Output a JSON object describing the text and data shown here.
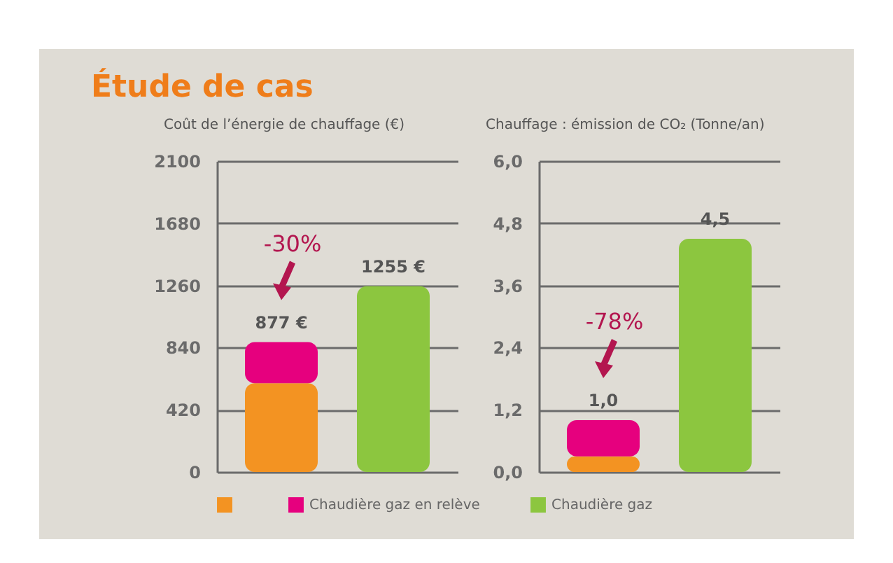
{
  "chart_data": [
    {
      "type": "bar",
      "title": "Étude de cas",
      "subtitle": "Coût de l’énergie de chauffage (€)",
      "categories": [
        null,
        null
      ],
      "stacked": true,
      "series": [
        {
          "color": "#f39322",
          "values": [
            600,
            null
          ]
        },
        {
          "name": "Chaudière gaz en relève",
          "color": "#e6007e",
          "values": [
            277,
            null
          ]
        },
        {
          "name": "Chaudière gaz",
          "color": "#8cc63f",
          "values": [
            null,
            1255
          ]
        }
      ],
      "totals": [
        "877 €",
        "1255 €"
      ],
      "annotations": [
        "-30%"
      ],
      "ylim": [
        0,
        2100
      ],
      "yticks": [
        0,
        420,
        840,
        1260,
        1680,
        2100
      ],
      "grid": "y",
      "legend": "bottom"
    },
    {
      "type": "bar",
      "subtitle": "Chauffage : émission de CO₂ (Tonne/an)",
      "categories": [
        null,
        null
      ],
      "stacked": true,
      "series": [
        {
          "color": "#f39322",
          "values": [
            0.3,
            null
          ]
        },
        {
          "color": "#e6007e",
          "values": [
            0.7,
            null
          ]
        },
        {
          "color": "#8cc63f",
          "values": [
            null,
            4.5
          ]
        }
      ],
      "totals": [
        "1,0",
        "4,5"
      ],
      "annotations": [
        "-78%"
      ],
      "ylim": [
        0,
        6
      ],
      "yticks": [
        {
          "value": 0,
          "label": "0,0"
        },
        {
          "value": 1.2,
          "label": "1,2"
        },
        {
          "value": 2.4,
          "label": "2,4"
        },
        {
          "value": 3.6,
          "label": "3,6"
        },
        {
          "value": 4.8,
          "label": "4,8"
        },
        {
          "value": 6,
          "label": "6,0"
        }
      ],
      "grid": "y"
    }
  ]
}
